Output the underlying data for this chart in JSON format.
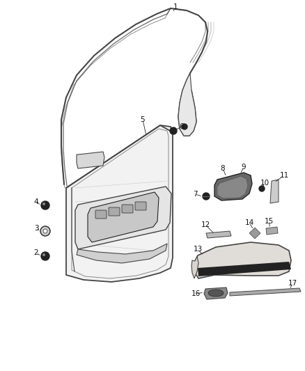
{
  "bg_color": "#ffffff",
  "lc": "#444444",
  "lc_dark": "#222222",
  "lc_light": "#888888",
  "figsize": [
    4.38,
    5.33
  ],
  "dpi": 100
}
